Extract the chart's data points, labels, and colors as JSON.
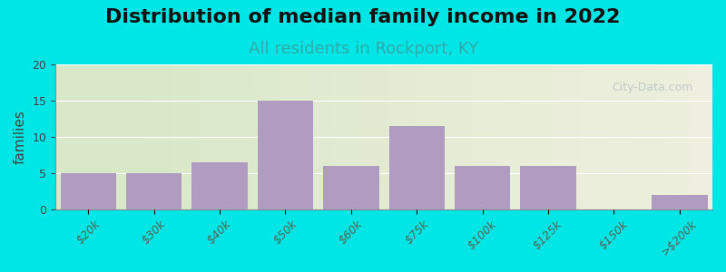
{
  "title": "Distribution of median family income in 2022",
  "subtitle": "All residents in Rockport, KY",
  "xlabel": "",
  "ylabel": "families",
  "categories": [
    "$20k",
    "$30k",
    "$40k",
    "$50k",
    "$60k",
    "$75k",
    "$100k",
    "$125k",
    "$150k",
    ">$200k"
  ],
  "values": [
    5,
    5,
    6.5,
    15,
    6,
    11.5,
    6,
    6,
    0,
    2
  ],
  "bar_color": "#b09cc0",
  "background_outer": "#00e5e5",
  "background_inner_left": "#d8e8c8",
  "background_inner_right": "#f0f0e0",
  "ylim": [
    0,
    20
  ],
  "yticks": [
    0,
    5,
    10,
    15,
    20
  ],
  "title_fontsize": 16,
  "subtitle_fontsize": 13,
  "ylabel_fontsize": 11,
  "tick_fontsize": 9,
  "watermark_text": "City-Data.com",
  "watermark_color": "#b0b8c0"
}
